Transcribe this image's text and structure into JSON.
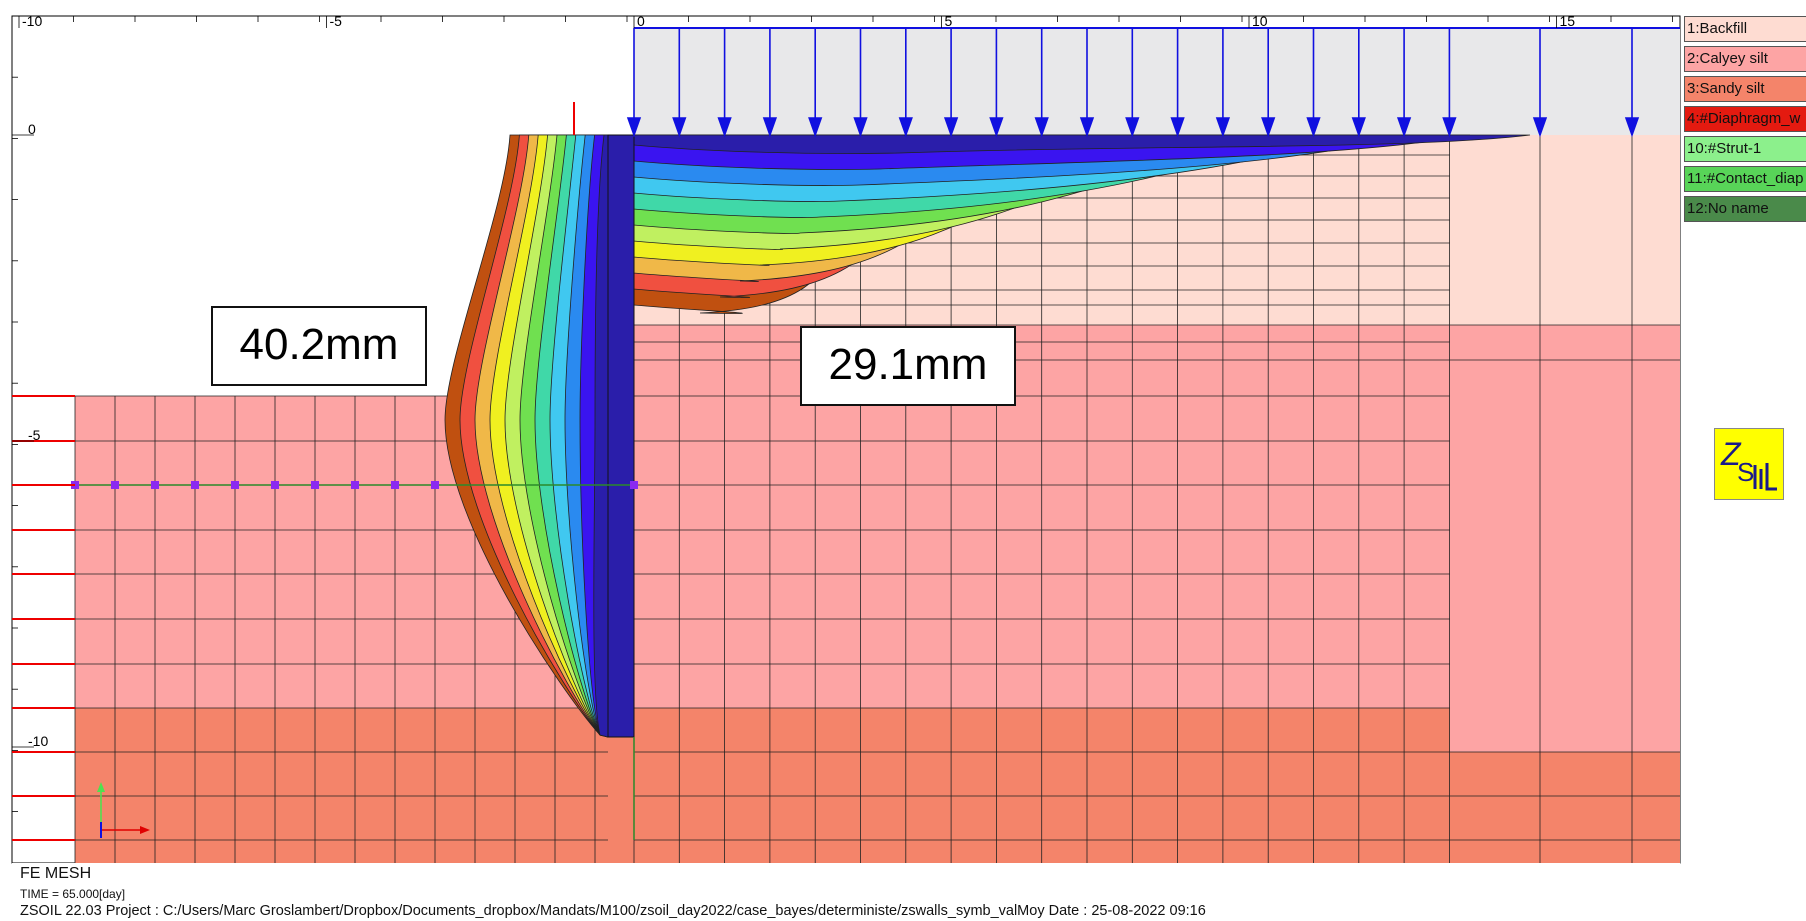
{
  "axis": {
    "x_ticks": [
      "-10",
      "-5",
      "0",
      "5",
      "10",
      "15"
    ],
    "y_ticks": [
      "0",
      "-5",
      "-10"
    ]
  },
  "materials": [
    {
      "label": "1:Backfill",
      "color": "#fedcd2"
    },
    {
      "label": "2:Calyey silt",
      "color": "#fda4a4"
    },
    {
      "label": "3:Sandy silt",
      "color": "#f4846a"
    },
    {
      "label": "4:#Diaphragm_w",
      "color": "#e41a10"
    },
    {
      "label": "10:#Strut-1",
      "color": "#8cf08c"
    },
    {
      "label": "11:#Contact_diap",
      "color": "#58d458"
    },
    {
      "label": "12:No name",
      "color": "#4a8a4a"
    }
  ],
  "annotations": {
    "wall_max": "40.2mm",
    "surface_max": "29.1mm"
  },
  "contour_colors": [
    "#2a1eaa",
    "#3a14f0",
    "#2a8af0",
    "#40c8f0",
    "#40d8a8",
    "#70e050",
    "#c0f060",
    "#f0f020",
    "#f0b848",
    "#f05040",
    "#c05010"
  ],
  "logo": {
    "text": "ZSoil"
  },
  "status": {
    "mode": "FE MESH",
    "time": "TIME = 65.000[day]",
    "info": "ZSOIL 22.03   Project : C:/Users/Marc Groslambert/Dropbox/Documents_dropbox/Mandats/M100/zsoil_day2022/case_bayes/deterministe/zswalls_symb_valMoy     Date : 25-08-2022 09:16"
  }
}
